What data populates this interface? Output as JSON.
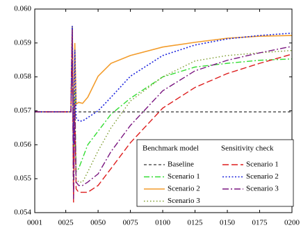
{
  "chart_data": {
    "type": "line",
    "x": [
      1,
      28,
      29,
      30,
      31,
      32,
      33,
      35,
      38,
      42,
      50,
      60,
      75,
      100,
      125,
      150,
      175,
      200
    ],
    "xlim": [
      1,
      200
    ],
    "xticks": [
      {
        "value": 1,
        "label": "0001"
      },
      {
        "value": 25,
        "label": "0025"
      },
      {
        "value": 50,
        "label": "0050"
      },
      {
        "value": 75,
        "label": "0075"
      },
      {
        "value": 100,
        "label": "0100"
      },
      {
        "value": 125,
        "label": "0125"
      },
      {
        "value": 150,
        "label": "0150"
      },
      {
        "value": 175,
        "label": "0175"
      },
      {
        "value": 200,
        "label": "0200"
      }
    ],
    "ylim": [
      0.054,
      0.06
    ],
    "yticks": [
      {
        "value": 0.054,
        "label": "0.054"
      },
      {
        "value": 0.055,
        "label": "0.055"
      },
      {
        "value": 0.056,
        "label": "0.056"
      },
      {
        "value": 0.057,
        "label": "0.057"
      },
      {
        "value": 0.058,
        "label": "0.058"
      },
      {
        "value": 0.059,
        "label": "0.059"
      },
      {
        "value": 0.06,
        "label": "0.060"
      }
    ],
    "legend_position": "lower right",
    "groups": [
      {
        "name": "Benchmark model",
        "series": [
          {
            "name": "Baseline",
            "color": "#000000",
            "dash": "4,3",
            "width": 1,
            "values": [
              0.05697,
              0.05697,
              0.05697,
              0.05697,
              0.05697,
              0.05697,
              0.05697,
              0.05697,
              0.05697,
              0.05697,
              0.05697,
              0.05697,
              0.05697,
              0.05697,
              0.05697,
              0.05697,
              0.05697,
              0.05697
            ]
          },
          {
            "name": "Scenario 1",
            "color": "#33dd33",
            "dash": "8,3,2,3",
            "width": 1.4,
            "values": [
              0.05697,
              0.05697,
              0.05697,
              0.0595,
              0.0546,
              0.0576,
              0.0552,
              0.0553,
              0.0556,
              0.056,
              0.0564,
              0.0569,
              0.05737,
              0.058,
              0.05829,
              0.0584,
              0.05849,
              0.05853
            ]
          },
          {
            "name": "Scenario 2",
            "color": "#f39c2b",
            "dash": "none",
            "width": 1.6,
            "values": [
              0.05697,
              0.05697,
              0.05697,
              0.0595,
              0.0563,
              0.059,
              0.0572,
              0.05725,
              0.05722,
              0.0574,
              0.05802,
              0.0584,
              0.05863,
              0.05888,
              0.05902,
              0.05914,
              0.0592,
              0.05922
            ]
          },
          {
            "name": "Scenario 3",
            "color": "#7a9a2a",
            "dash": "1.5,3",
            "width": 1.4,
            "values": [
              0.05697,
              0.05697,
              0.05697,
              0.0594,
              0.0548,
              0.0574,
              0.055,
              0.0549,
              0.0549,
              0.0552,
              0.05582,
              0.0565,
              0.05729,
              0.058,
              0.05847,
              0.05863,
              0.05871,
              0.05878
            ]
          }
        ]
      },
      {
        "name": "Sensitivity check",
        "series": [
          {
            "name": "Scenario 1",
            "color": "#dd1c1c",
            "dash": "9,4",
            "width": 1.4,
            "values": [
              0.05697,
              0.05697,
              0.05697,
              0.0593,
              0.0543,
              0.057,
              0.0547,
              0.0546,
              0.0546,
              0.0546,
              0.0548,
              0.0553,
              0.05606,
              0.05708,
              0.05769,
              0.0581,
              0.0584,
              0.05867
            ]
          },
          {
            "name": "Scenario 2",
            "color": "#1a22dd",
            "dash": "2,2.5",
            "width": 1.6,
            "values": [
              0.05697,
              0.05697,
              0.05697,
              0.0595,
              0.056,
              0.0588,
              0.0568,
              0.0567,
              0.0567,
              0.0568,
              0.057,
              0.0574,
              0.05802,
              0.05863,
              0.05894,
              0.05912,
              0.05922,
              0.05929
            ]
          },
          {
            "name": "Scenario 3",
            "color": "#7a1680",
            "dash": "9,3,2,3",
            "width": 1.4,
            "values": [
              0.05697,
              0.05697,
              0.05697,
              0.0594,
              0.0544,
              0.0572,
              0.0549,
              0.0548,
              0.0548,
              0.0549,
              0.05514,
              0.0558,
              0.05657,
              0.05759,
              0.05818,
              0.05849,
              0.05871,
              0.0589
            ]
          }
        ]
      }
    ]
  }
}
